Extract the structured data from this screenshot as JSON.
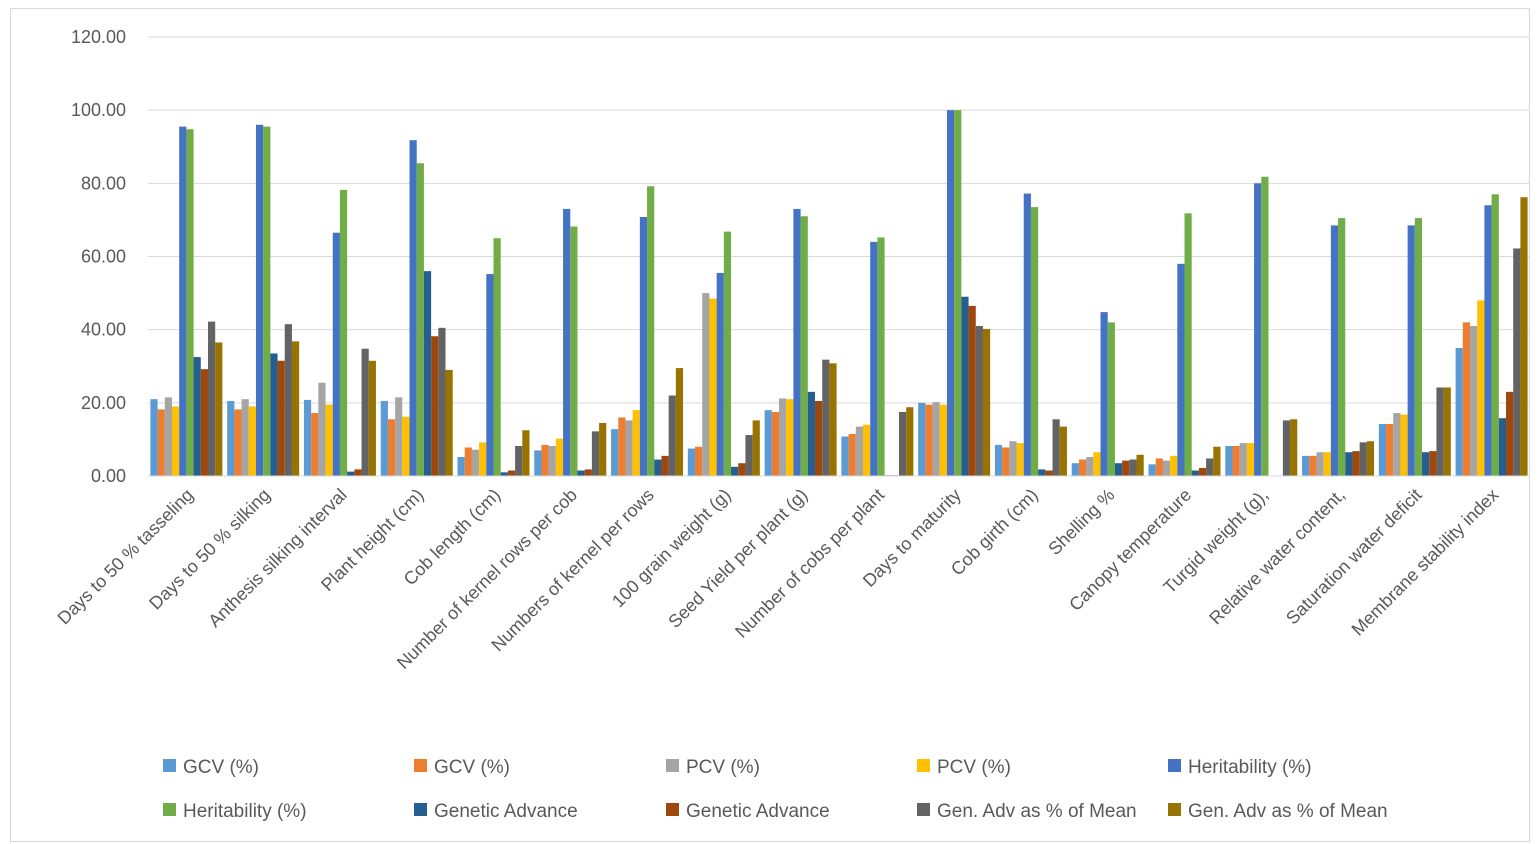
{
  "chart_data": {
    "type": "bar",
    "title": "",
    "xlabel": "",
    "ylabel": "",
    "ylim": [
      0,
      120
    ],
    "yticks": [
      "0.00",
      "20.00",
      "40.00",
      "60.00",
      "80.00",
      "100.00",
      "120.00"
    ],
    "grid": true,
    "legend_position": "bottom",
    "categories": [
      "Days to 50 % tasseling",
      "Days to 50 % silking",
      "Anthesis silking interval",
      "Plant height (cm)",
      "Cob length (cm)",
      "Number of kernel rows per cob",
      "Numbers of kernel per rows",
      "100 grain weight (g)",
      "Seed Yield per plant (g)",
      "Number of cobs per plant",
      "Days to maturity",
      "Cob girth (cm)",
      "Shelling %",
      "Canopy temperature",
      "Turgid weight (g),",
      "Relative water content,",
      "Saturation water deficit",
      "Membrane stability index"
    ],
    "series": [
      {
        "name": "GCV (%)",
        "color": "#5b9bd5",
        "values": [
          21.0,
          20.5,
          20.8,
          20.5,
          5.2,
          7.0,
          12.8,
          7.5,
          18.0,
          10.8,
          20.0,
          8.5,
          3.5,
          3.2,
          8.2,
          5.5,
          14.2,
          35.0
        ]
      },
      {
        "name": "GCV (%)",
        "color": "#ed7d31",
        "values": [
          18.2,
          18.2,
          17.2,
          15.5,
          7.8,
          8.5,
          16.0,
          8.0,
          17.5,
          11.5,
          19.5,
          7.8,
          4.5,
          4.8,
          8.2,
          5.5,
          14.2,
          42.0
        ]
      },
      {
        "name": "PCV (%)",
        "color": "#a5a5a5",
        "values": [
          21.5,
          21.0,
          25.5,
          21.5,
          7.2,
          8.2,
          15.2,
          50.0,
          21.2,
          13.5,
          20.2,
          9.5,
          5.2,
          4.2,
          9.0,
          6.5,
          17.2,
          41.0
        ]
      },
      {
        "name": "PCV (%)",
        "color": "#ffc000",
        "values": [
          19.0,
          19.0,
          19.5,
          16.2,
          9.2,
          10.2,
          18.0,
          48.5,
          21.0,
          14.0,
          19.5,
          9.0,
          6.5,
          5.5,
          9.0,
          6.5,
          16.8,
          48.0
        ]
      },
      {
        "name": "Heritability (%)",
        "color": "#4472c4",
        "values": [
          95.5,
          96.0,
          66.5,
          91.8,
          55.2,
          73.0,
          70.8,
          55.5,
          73.0,
          64.0,
          100.0,
          77.2,
          44.8,
          58.0,
          80.0,
          68.5,
          68.5,
          74.0
        ]
      },
      {
        "name": "Heritability (%)",
        "color": "#70ad47",
        "values": [
          94.8,
          95.5,
          78.2,
          85.5,
          65.0,
          68.2,
          79.2,
          66.8,
          71.0,
          65.2,
          100.0,
          73.5,
          42.0,
          71.8,
          81.8,
          70.5,
          70.5,
          77.0
        ]
      },
      {
        "name": "Genetic Advance",
        "color": "#255e91",
        "values": [
          32.5,
          33.5,
          1.2,
          56.0,
          1.0,
          1.5,
          4.5,
          2.5,
          23.0,
          0.2,
          49.0,
          1.8,
          3.5,
          1.5,
          0.0,
          6.5,
          6.5,
          15.8
        ]
      },
      {
        "name": "Genetic Advance",
        "color": "#9e480e",
        "values": [
          29.2,
          31.5,
          1.8,
          38.2,
          1.5,
          1.8,
          5.5,
          3.5,
          20.5,
          0.2,
          46.5,
          1.5,
          4.2,
          2.2,
          0.0,
          6.8,
          6.8,
          23.0
        ]
      },
      {
        "name": "Gen. Adv as % of Mean",
        "color": "#636363",
        "values": [
          42.2,
          41.5,
          34.8,
          40.5,
          8.2,
          12.2,
          22.0,
          11.2,
          31.8,
          17.5,
          41.0,
          15.5,
          4.5,
          4.8,
          15.2,
          9.2,
          24.2,
          62.2
        ]
      },
      {
        "name": "Gen. Adv as % of Mean",
        "color": "#997300",
        "values": [
          36.5,
          36.8,
          31.5,
          29.0,
          12.5,
          14.5,
          29.5,
          15.2,
          30.8,
          18.8,
          40.2,
          13.5,
          5.8,
          8.0,
          15.5,
          9.5,
          24.2,
          76.2
        ]
      }
    ]
  }
}
